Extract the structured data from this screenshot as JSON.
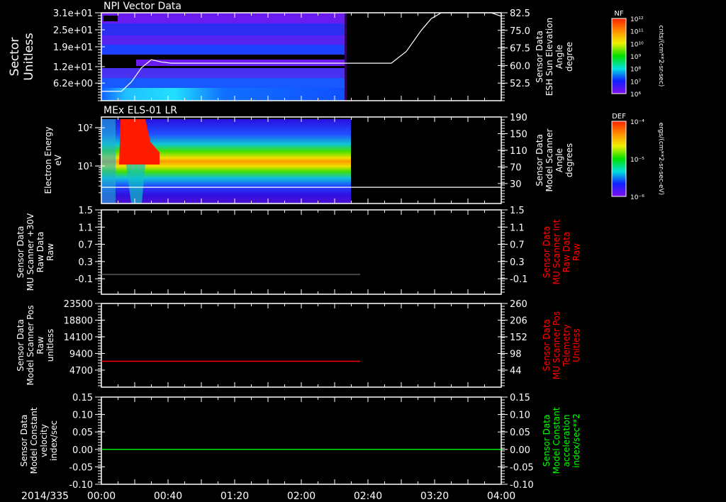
{
  "date_label": "2014/335",
  "time_axis": {
    "ticks_hours": [
      0,
      0.6667,
      1.3333,
      2,
      2.6667,
      3.3333,
      4
    ],
    "labels": [
      "00:00",
      "00:40",
      "01:20",
      "02:00",
      "02:40",
      "03:20",
      "04:00"
    ],
    "range_hours": [
      0,
      4
    ]
  },
  "colors": {
    "background": "#000000",
    "axis": "#ffffff",
    "red_label": "#ff0000",
    "green_label": "#00ff00"
  },
  "chart_data": [
    {
      "type": "heatmap",
      "title": "NPI Vector Data",
      "ylabel": [
        "Sector",
        "Unitless"
      ],
      "yticks": [
        31,
        25,
        19,
        12,
        6.2
      ],
      "ytick_labels": [
        "3.1e+01",
        "2.5e+01",
        "1.9e+01",
        "1.2e+01",
        "6.2e+00"
      ],
      "ylim": [
        0,
        31
      ],
      "data_end_hours": 2.45,
      "colorbar": {
        "label": "NF",
        "tick_labels": [
          "10¹²",
          "10¹¹",
          "10¹⁰",
          "10⁹",
          "10⁸",
          "10⁷",
          "10⁶"
        ],
        "units": "cnts/(cm**2-sr-sec)"
      },
      "overlay": {
        "type": "line",
        "ylabel": [
          "Sensor Data",
          "ESH Sun Elevation",
          "Angle",
          "degree"
        ],
        "yticks": [
          82.5,
          75.0,
          67.5,
          60.0,
          52.5
        ],
        "ytick_labels": [
          "82.5",
          "75.0",
          "67.5",
          "60.0",
          "52.5"
        ],
        "ylim": [
          45,
          82.5
        ],
        "x": [
          0,
          0.2,
          0.3,
          0.4,
          0.5,
          0.6,
          0.7,
          2.9,
          3.05,
          3.2,
          3.3,
          3.4,
          3.9,
          4.0
        ],
        "y": [
          49,
          49,
          53,
          59,
          62.5,
          61.5,
          61,
          61,
          66,
          75,
          80,
          82.5,
          82.5,
          81
        ]
      }
    },
    {
      "type": "heatmap",
      "title": "MEx ELS-01 LR",
      "ylabel": [
        "Electron Energy",
        "eV"
      ],
      "yscale": "log",
      "yticks": [
        100,
        10
      ],
      "ytick_labels": [
        "10²",
        "10¹"
      ],
      "ylim_log10": [
        0.02,
        2.28
      ],
      "data_end_hours": 2.5,
      "colorbar": {
        "label": "DEF",
        "tick_labels": [
          "10⁻⁴",
          "10⁻⁵",
          "10⁻⁶"
        ],
        "units": "ergs/(cm**2-sr-sec-eV)"
      },
      "overlay": {
        "type": "line",
        "ylabel": [
          "Sensor Data",
          "Model Scanner",
          "Angle",
          "degrees"
        ],
        "yticks": [
          190,
          150,
          110,
          70,
          30
        ],
        "ytick_labels": [
          "190",
          "150",
          "110",
          "70",
          "30"
        ],
        "ylim": [
          -18,
          190
        ],
        "x": [
          0,
          4
        ],
        "y": [
          21,
          21
        ]
      }
    },
    {
      "type": "line",
      "ylabel": [
        "Sensor Data",
        "MU Scanner +30V",
        "Raw Data",
        "Raw"
      ],
      "yticks": [
        1.5,
        1.1,
        0.7,
        0.3,
        -0.1
      ],
      "ytick_labels": [
        "1.5",
        "1.1",
        "0.7",
        "0.3",
        "-0.1"
      ],
      "ylim": [
        -0.46,
        1.5
      ],
      "series": [
        {
          "name": "MU Scanner +30V",
          "color": "#606060",
          "x": [
            0,
            2.59
          ],
          "y": [
            0,
            0
          ]
        }
      ],
      "right_axis": {
        "ylabel": [
          "Sensor Data",
          "MU Scanner Int",
          "Raw Data",
          "Raw"
        ],
        "yticks": [
          1.5,
          1.1,
          0.7,
          0.3,
          -0.1
        ],
        "ytick_labels": [
          "1.5",
          "1.1",
          "0.7",
          "0.3",
          "-0.1"
        ],
        "ylim": [
          -0.46,
          1.5
        ]
      }
    },
    {
      "type": "line",
      "ylabel": [
        "Sensor Data",
        "Model Scanner Pos",
        "Raw",
        "unitless"
      ],
      "yticks": [
        23500,
        18800,
        14100,
        9400,
        4700
      ],
      "ytick_labels": [
        "23500",
        "18800",
        "14100",
        "9400",
        "4700"
      ],
      "ylim": [
        -100,
        23500
      ],
      "series": [
        {
          "name": "MU Scanner Pos",
          "color": "#ff0000",
          "x": [
            0,
            2.59
          ],
          "y": [
            7200,
            7200
          ]
        }
      ],
      "right_axis": {
        "ylabel": [
          "Sensor Data",
          "MU Scanner Pos",
          "Telemetry",
          "Unitless"
        ],
        "yticks": [
          260,
          206,
          152,
          98,
          44
        ],
        "ytick_labels": [
          "260",
          "206",
          "152",
          "98",
          "44"
        ],
        "ylim": [
          -11,
          260
        ]
      }
    },
    {
      "type": "line",
      "ylabel": [
        "Sensor Data",
        "Model Constant",
        "velocity",
        "index/sec"
      ],
      "yticks": [
        0.15,
        0.1,
        0.05,
        0.0,
        -0.05,
        -0.1
      ],
      "ytick_labels": [
        "0.15",
        "0.10",
        "0.05",
        "0.00",
        "-0.05",
        "-0.10"
      ],
      "ylim": [
        -0.1,
        0.15
      ],
      "series": [
        {
          "name": "Model Constant acceleration",
          "color": "#00ff00",
          "x": [
            0,
            4
          ],
          "y": [
            0,
            0
          ]
        }
      ],
      "right_axis": {
        "ylabel": [
          "Sensor Data",
          "Model Constant",
          "acceleration",
          "index/sec**2"
        ],
        "yticks": [
          0.15,
          0.1,
          0.05,
          0.0,
          -0.05,
          -0.1
        ],
        "ytick_labels": [
          "0.15",
          "0.10",
          "0.05",
          "0.00",
          "-0.05",
          "-0.10"
        ],
        "ylim": [
          -0.1,
          0.15
        ]
      }
    }
  ]
}
